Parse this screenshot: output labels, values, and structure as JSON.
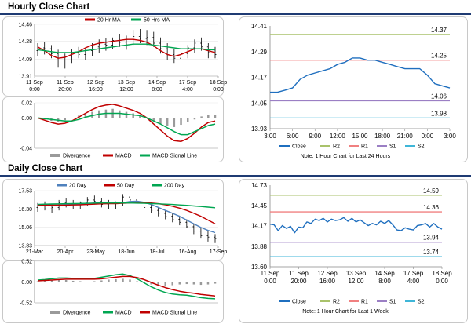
{
  "sections": [
    {
      "title": "Hourly Close Chart"
    },
    {
      "title": "Daily Close Chart"
    }
  ],
  "chart_data": [
    {
      "id": "hourly_ma",
      "type": "line",
      "ylim": [
        13.91,
        14.46
      ],
      "y_ticks": [
        "14.46",
        "14.28",
        "14.09",
        "13.91"
      ],
      "x_ticks": [
        "11 Sep\n0:00",
        "11 Sep\n20:00",
        "12 Sep\n16:00",
        "13 Sep\n12:00",
        "14 Sep\n8:00",
        "17 Sep\n4:00",
        "18 Sep\n0:00"
      ],
      "legend_position": "top",
      "colors": {
        "price": "#000000",
        "ma_short": "#c00000",
        "ma_long": "#00a651"
      },
      "price_ohlc": [
        [
          14.18,
          14.26,
          14.12,
          14.21
        ],
        [
          14.21,
          14.27,
          14.14,
          14.2
        ],
        [
          14.2,
          14.24,
          14.1,
          14.15
        ],
        [
          14.15,
          14.19,
          14.0,
          14.08
        ],
        [
          14.08,
          14.15,
          13.99,
          14.12
        ],
        [
          14.12,
          14.2,
          14.05,
          14.16
        ],
        [
          14.16,
          14.22,
          14.1,
          14.14
        ],
        [
          14.14,
          14.2,
          14.08,
          14.18
        ],
        [
          14.18,
          14.26,
          14.12,
          14.22
        ],
        [
          14.22,
          14.3,
          14.16,
          14.25
        ],
        [
          14.25,
          14.31,
          14.18,
          14.24
        ],
        [
          14.24,
          14.32,
          14.2,
          14.29
        ],
        [
          14.29,
          14.36,
          14.22,
          14.27
        ],
        [
          14.27,
          14.34,
          14.19,
          14.3
        ],
        [
          14.3,
          14.4,
          14.24,
          14.33
        ],
        [
          14.33,
          14.41,
          14.26,
          14.31
        ],
        [
          14.31,
          14.4,
          14.24,
          14.32
        ],
        [
          14.32,
          14.38,
          14.22,
          14.26
        ],
        [
          14.26,
          14.32,
          14.15,
          14.2
        ],
        [
          14.2,
          14.26,
          14.08,
          14.14
        ],
        [
          14.14,
          14.2,
          14.05,
          14.1
        ],
        [
          14.1,
          14.18,
          14.04,
          14.15
        ],
        [
          14.15,
          14.24,
          14.1,
          14.21
        ],
        [
          14.21,
          14.3,
          14.16,
          14.26
        ],
        [
          14.26,
          14.32,
          14.18,
          14.22
        ],
        [
          14.22,
          14.26,
          14.1,
          14.16
        ],
        [
          14.16,
          14.22,
          14.1,
          14.14
        ]
      ],
      "series": [
        {
          "name": "20 Hr MA",
          "values": [
            14.22,
            14.18,
            14.13,
            14.1,
            14.11,
            14.14,
            14.17,
            14.21,
            14.24,
            14.26,
            14.27,
            14.28,
            14.29,
            14.3,
            14.3,
            14.29,
            14.27,
            14.23,
            14.18,
            14.14,
            14.12,
            14.14,
            14.17,
            14.2,
            14.2,
            14.18,
            14.16
          ]
        },
        {
          "name": "50 Hrs MA",
          "values": [
            14.19,
            14.18,
            14.17,
            14.16,
            14.16,
            14.16,
            14.17,
            14.18,
            14.19,
            14.2,
            14.21,
            14.22,
            14.23,
            14.24,
            14.25,
            14.25,
            14.25,
            14.24,
            14.23,
            14.22,
            14.21,
            14.2,
            14.2,
            14.2,
            14.2,
            14.19,
            14.19
          ]
        }
      ]
    },
    {
      "id": "hourly_macd",
      "type": "line",
      "ylim": [
        -0.04,
        0.02
      ],
      "y_ticks": [
        "0.02",
        "0.00",
        "-0.04"
      ],
      "legend_position": "bottom",
      "colors": {
        "divergence": "#9a9a9a",
        "macd": "#c00000",
        "signal": "#00a651"
      },
      "divergence": [
        0.0,
        -0.002,
        -0.004,
        -0.005,
        -0.003,
        0.0,
        0.003,
        0.005,
        0.008,
        0.01,
        0.011,
        0.012,
        0.01,
        0.008,
        0.006,
        0.003,
        0.0,
        -0.004,
        -0.008,
        -0.011,
        -0.012,
        -0.009,
        -0.005,
        -0.002,
        0.002,
        0.004,
        0.004
      ],
      "series": [
        {
          "name": "Divergence"
        },
        {
          "name": "MACD",
          "values": [
            0.0,
            -0.003,
            -0.006,
            -0.008,
            -0.007,
            -0.004,
            0.001,
            0.006,
            0.011,
            0.015,
            0.017,
            0.018,
            0.016,
            0.013,
            0.01,
            0.006,
            0.0,
            -0.008,
            -0.016,
            -0.024,
            -0.03,
            -0.031,
            -0.027,
            -0.02,
            -0.012,
            -0.006,
            -0.004
          ]
        },
        {
          "name": "MACD Signal Line",
          "values": [
            0.0,
            -0.001,
            -0.002,
            -0.003,
            -0.004,
            -0.004,
            -0.002,
            0.001,
            0.003,
            0.005,
            0.006,
            0.006,
            0.006,
            0.005,
            0.004,
            0.003,
            0.0,
            -0.004,
            -0.008,
            -0.013,
            -0.018,
            -0.022,
            -0.022,
            -0.018,
            -0.014,
            -0.01,
            -0.008
          ]
        }
      ]
    },
    {
      "id": "hourly_pivot",
      "type": "line",
      "ylim": [
        13.93,
        14.41
      ],
      "y_ticks": [
        "14.41",
        "14.29",
        "14.17",
        "14.05",
        "13.93"
      ],
      "x_ticks": [
        "3:00",
        "6:00",
        "9:00",
        "12:00",
        "15:00",
        "18:00",
        "21:00",
        "0:00",
        "3:00"
      ],
      "x": [
        0,
        1,
        2,
        3,
        4,
        5,
        6,
        7,
        8,
        9,
        10,
        11,
        12,
        13,
        14,
        15,
        16,
        17,
        18,
        19,
        20,
        21,
        22,
        23,
        24
      ],
      "levels": [
        {
          "name": "R2",
          "value": 14.37,
          "label": "14.37",
          "color": "#a9c26b"
        },
        {
          "name": "R1",
          "value": 14.25,
          "label": "14.25",
          "color": "#f08080"
        },
        {
          "name": "S1",
          "value": 14.06,
          "label": "14.06",
          "color": "#9b7fc4"
        },
        {
          "name": "S2",
          "value": 13.98,
          "label": "13.98",
          "color": "#3fb6d8"
        }
      ],
      "series": [
        {
          "name": "Close",
          "color": "#1f6fbf",
          "values": [
            14.1,
            14.1,
            14.11,
            14.12,
            14.16,
            14.18,
            14.19,
            14.2,
            14.21,
            14.23,
            14.24,
            14.26,
            14.26,
            14.25,
            14.25,
            14.24,
            14.23,
            14.22,
            14.21,
            14.21,
            14.21,
            14.18,
            14.14,
            14.13,
            14.12
          ]
        }
      ],
      "legend": [
        "Close",
        "R2",
        "R1",
        "S1",
        "S2"
      ],
      "note": "Note: 1 Hour Chart for Last 24 Hours"
    },
    {
      "id": "daily_ma",
      "type": "line",
      "ylim": [
        13.83,
        17.53
      ],
      "y_ticks": [
        "17.53",
        "16.30",
        "15.06",
        "13.83"
      ],
      "x_ticks": [
        "21-Mar",
        "20-Apr",
        "23-May",
        "18-Jun",
        "18-Jul",
        "16-Aug",
        "17-Sep"
      ],
      "legend_position": "top",
      "colors": {
        "price": "#000000",
        "ma20": "#4f81bd",
        "ma50": "#c00000",
        "ma200": "#00a651"
      },
      "price_ohlc": [
        [
          16.4,
          16.7,
          16.1,
          16.5
        ],
        [
          16.5,
          16.8,
          16.2,
          16.3
        ],
        [
          16.3,
          16.6,
          16.0,
          16.4
        ],
        [
          16.4,
          16.9,
          16.2,
          16.7
        ],
        [
          16.7,
          17.0,
          16.4,
          16.6
        ],
        [
          16.6,
          16.9,
          16.3,
          16.5
        ],
        [
          16.5,
          16.8,
          16.3,
          16.7
        ],
        [
          16.7,
          17.1,
          16.5,
          16.9
        ],
        [
          16.9,
          17.2,
          16.6,
          16.8
        ],
        [
          16.8,
          17.0,
          16.4,
          16.6
        ],
        [
          16.6,
          16.9,
          16.3,
          16.5
        ],
        [
          16.5,
          16.8,
          16.3,
          16.7
        ],
        [
          16.7,
          17.3,
          16.5,
          17.1
        ],
        [
          17.1,
          17.4,
          16.7,
          16.9
        ],
        [
          16.9,
          17.1,
          16.5,
          16.7
        ],
        [
          16.7,
          16.9,
          16.3,
          16.4
        ],
        [
          16.4,
          16.6,
          16.0,
          16.2
        ],
        [
          16.2,
          16.4,
          15.8,
          16.0
        ],
        [
          16.0,
          16.2,
          15.6,
          15.8
        ],
        [
          15.8,
          16.0,
          15.4,
          15.6
        ],
        [
          15.6,
          15.8,
          15.2,
          15.4
        ],
        [
          15.4,
          15.6,
          15.0,
          15.1
        ],
        [
          15.1,
          15.3,
          14.6,
          14.8
        ],
        [
          14.8,
          15.0,
          14.3,
          14.5
        ],
        [
          14.5,
          14.8,
          14.1,
          14.4
        ],
        [
          14.4,
          14.6,
          14.0,
          14.3
        ]
      ],
      "series": [
        {
          "name": "20 Day",
          "values": [
            16.6,
            16.6,
            16.55,
            16.55,
            16.6,
            16.62,
            16.62,
            16.65,
            16.7,
            16.72,
            16.7,
            16.68,
            16.72,
            16.8,
            16.82,
            16.75,
            16.6,
            16.4,
            16.2,
            16.0,
            15.8,
            15.55,
            15.3,
            15.05,
            14.85,
            14.7
          ]
        },
        {
          "name": "50 Day",
          "values": [
            16.55,
            16.55,
            16.55,
            16.55,
            16.56,
            16.57,
            16.58,
            16.6,
            16.62,
            16.64,
            16.65,
            16.66,
            16.68,
            16.7,
            16.72,
            16.72,
            16.7,
            16.65,
            16.58,
            16.48,
            16.35,
            16.2,
            16.0,
            15.8,
            15.55,
            15.3
          ]
        },
        {
          "name": "200 Day",
          "values": [
            16.6,
            16.62,
            16.63,
            16.64,
            16.65,
            16.66,
            16.67,
            16.68,
            16.69,
            16.7,
            16.7,
            16.7,
            16.7,
            16.7,
            16.69,
            16.68,
            16.66,
            16.64,
            16.62,
            16.6,
            16.57,
            16.54,
            16.5,
            16.46,
            16.42,
            16.38
          ]
        }
      ]
    },
    {
      "id": "daily_macd",
      "type": "line",
      "ylim": [
        -0.52,
        0.52
      ],
      "y_ticks": [
        "0.52",
        "0.00",
        "-0.52"
      ],
      "legend_position": "bottom",
      "colors": {
        "divergence": "#9a9a9a",
        "macd": "#00a651",
        "signal": "#c00000"
      },
      "divergence": [
        0.02,
        0.03,
        0.05,
        0.06,
        0.05,
        0.03,
        0.02,
        0.01,
        0.02,
        0.04,
        0.06,
        0.07,
        0.08,
        0.06,
        0.02,
        -0.02,
        -0.06,
        -0.08,
        -0.09,
        -0.08,
        -0.06,
        -0.05,
        -0.06,
        -0.07,
        -0.06,
        -0.04
      ],
      "series": [
        {
          "name": "Divergence"
        },
        {
          "name": "MACD",
          "values": [
            0.05,
            0.06,
            0.08,
            0.1,
            0.1,
            0.09,
            0.08,
            0.08,
            0.09,
            0.12,
            0.15,
            0.18,
            0.2,
            0.16,
            0.08,
            -0.02,
            -0.12,
            -0.2,
            -0.26,
            -0.3,
            -0.32,
            -0.33,
            -0.36,
            -0.39,
            -0.41,
            -0.42
          ]
        },
        {
          "name": "MACD Signal Line",
          "values": [
            0.03,
            0.04,
            0.05,
            0.06,
            0.07,
            0.07,
            0.07,
            0.07,
            0.07,
            0.08,
            0.1,
            0.12,
            0.14,
            0.14,
            0.11,
            0.06,
            -0.01,
            -0.08,
            -0.14,
            -0.19,
            -0.23,
            -0.26,
            -0.28,
            -0.31,
            -0.33,
            -0.35
          ]
        }
      ]
    },
    {
      "id": "daily_pivot",
      "type": "line",
      "ylim": [
        13.6,
        14.73
      ],
      "y_ticks": [
        "14.73",
        "14.45",
        "14.17",
        "13.88",
        "13.60"
      ],
      "x_ticks": [
        "11 Sep\n0:00",
        "11 Sep\n20:00",
        "12 Sep\n16:00",
        "13 Sep\n12:00",
        "14 Sep\n8:00",
        "17 Sep\n4:00",
        "18 Sep\n0:00"
      ],
      "levels": [
        {
          "name": "R2",
          "value": 14.59,
          "label": "14.59",
          "color": "#a9c26b"
        },
        {
          "name": "R1",
          "value": 14.36,
          "label": "14.36",
          "color": "#f08080"
        },
        {
          "name": "S1",
          "value": 13.94,
          "label": "13.94",
          "color": "#9b7fc4"
        },
        {
          "name": "S2",
          "value": 13.74,
          "label": "13.74",
          "color": "#3fb6d8"
        }
      ],
      "series": [
        {
          "name": "Close",
          "color": "#1f6fbf",
          "values": [
            14.19,
            14.18,
            14.1,
            14.17,
            14.13,
            14.16,
            14.07,
            14.15,
            14.14,
            14.22,
            14.2,
            14.26,
            14.24,
            14.27,
            14.22,
            14.26,
            14.24,
            14.25,
            14.28,
            14.23,
            14.27,
            14.22,
            14.25,
            14.21,
            14.17,
            14.2,
            14.18,
            14.23,
            14.2,
            14.24,
            14.18,
            14.11,
            14.1,
            14.14,
            14.12,
            14.11,
            14.17,
            14.18,
            14.2,
            14.15,
            14.2,
            14.15,
            14.12
          ]
        }
      ],
      "legend": [
        "Close",
        "R2",
        "R1",
        "S1",
        "S2"
      ],
      "note": "Note: 1 Hour Chart for Last 1 Week"
    }
  ]
}
